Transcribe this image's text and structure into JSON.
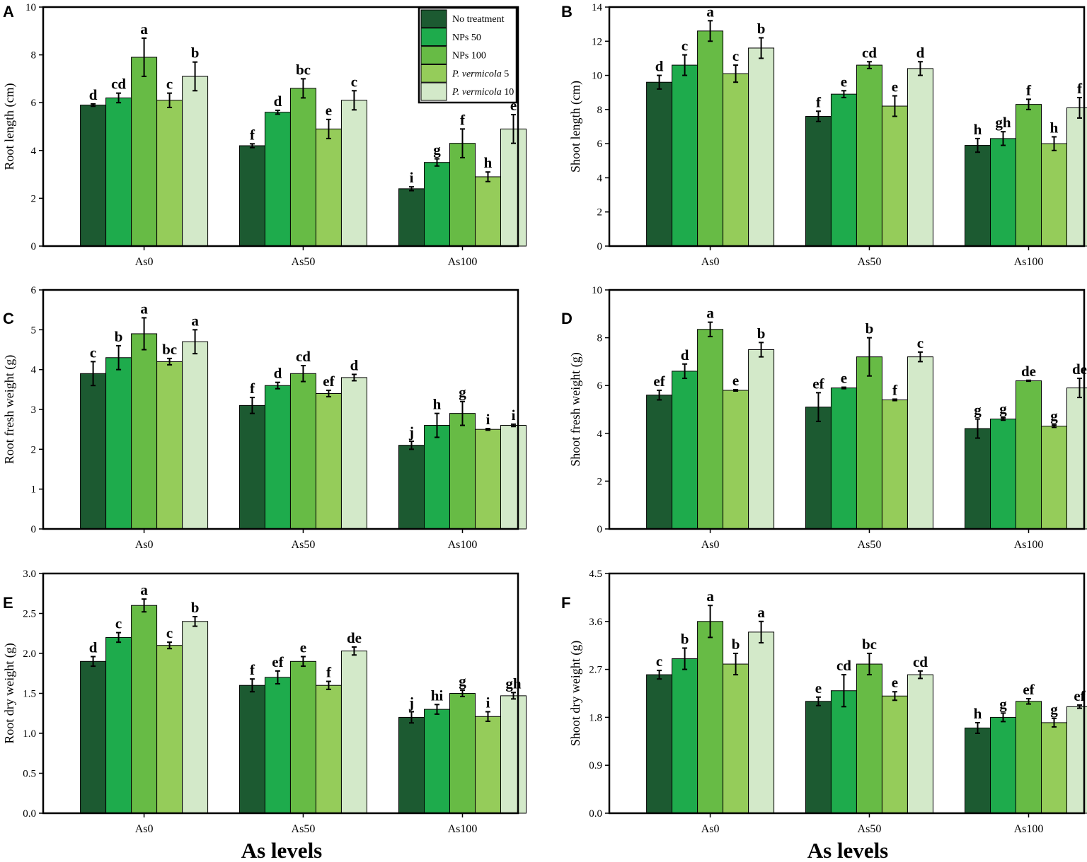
{
  "colors": {
    "No treatment": "#1c5a31",
    "NPs 50": "#1eab4c",
    "NPs 100": "#67bb45",
    "P. vermicola 5": "#95cc5a",
    "P. vermicola 10": "#d3e9c9"
  },
  "legend": {
    "entries": [
      {
        "prefix": "No treatment",
        "italic": "",
        "suffix": ""
      },
      {
        "prefix": "NPs 50",
        "italic": "",
        "suffix": ""
      },
      {
        "prefix": "NPs 100",
        "italic": "",
        "suffix": ""
      },
      {
        "prefix": "",
        "italic": "P. vermicola",
        "suffix": " 5"
      },
      {
        "prefix": "",
        "italic": "P. vermicola",
        "suffix": " 10"
      }
    ]
  },
  "x_title": "As levels",
  "chart_data": [
    {
      "panel": "A",
      "type": "bar",
      "ylabel": "Root length (cm)",
      "xlabel": "As levels",
      "categories": [
        "As0",
        "As50",
        "As100"
      ],
      "ylim": [
        0,
        10
      ],
      "yticks": [
        0,
        2,
        4,
        6,
        8,
        10
      ],
      "ytick_labels": [
        "0",
        "2",
        "4",
        "6",
        "8",
        "10"
      ],
      "series": [
        {
          "name": "No treatment",
          "values": [
            5.9,
            4.2,
            2.4
          ],
          "errors": [
            0.05,
            0.08,
            0.08
          ],
          "letters": [
            "d",
            "f",
            "i"
          ]
        },
        {
          "name": "NPs 50",
          "values": [
            6.2,
            5.6,
            3.5
          ],
          "errors": [
            0.2,
            0.08,
            0.15
          ],
          "letters": [
            "cd",
            "d",
            "g"
          ]
        },
        {
          "name": "NPs 100",
          "values": [
            7.9,
            6.6,
            4.3
          ],
          "errors": [
            0.8,
            0.4,
            0.6
          ],
          "letters": [
            "a",
            "bc",
            "f"
          ]
        },
        {
          "name": "P. vermicola 5",
          "values": [
            6.1,
            4.9,
            2.9
          ],
          "errors": [
            0.3,
            0.4,
            0.2
          ],
          "letters": [
            "c",
            "e",
            "h"
          ]
        },
        {
          "name": "P. vermicola 10",
          "values": [
            7.1,
            6.1,
            4.9
          ],
          "errors": [
            0.6,
            0.4,
            0.6
          ],
          "letters": [
            "b",
            "c",
            "e"
          ]
        }
      ]
    },
    {
      "panel": "B",
      "type": "bar",
      "ylabel": "Shoot length (cm)",
      "xlabel": "As levels",
      "categories": [
        "As0",
        "As50",
        "As100"
      ],
      "ylim": [
        0,
        14
      ],
      "yticks": [
        0,
        2,
        4,
        6,
        8,
        10,
        12,
        14
      ],
      "ytick_labels": [
        "0",
        "2",
        "4",
        "6",
        "8",
        "10",
        "12",
        "14"
      ],
      "series": [
        {
          "name": "No treatment",
          "values": [
            9.6,
            7.6,
            5.9
          ],
          "errors": [
            0.4,
            0.3,
            0.4
          ],
          "letters": [
            "d",
            "f",
            "h"
          ]
        },
        {
          "name": "NPs 50",
          "values": [
            10.6,
            8.9,
            6.3
          ],
          "errors": [
            0.6,
            0.2,
            0.4
          ],
          "letters": [
            "c",
            "e",
            "gh"
          ]
        },
        {
          "name": "NPs 100",
          "values": [
            12.6,
            10.6,
            8.3
          ],
          "errors": [
            0.6,
            0.2,
            0.3
          ],
          "letters": [
            "a",
            "cd",
            "f"
          ]
        },
        {
          "name": "P. vermicola 5",
          "values": [
            10.1,
            8.2,
            6.0
          ],
          "errors": [
            0.5,
            0.6,
            0.4
          ],
          "letters": [
            "c",
            "e",
            "h"
          ]
        },
        {
          "name": "P. vermicola 10",
          "values": [
            11.6,
            10.4,
            8.1
          ],
          "errors": [
            0.6,
            0.4,
            0.6
          ],
          "letters": [
            "b",
            "d",
            "f"
          ]
        }
      ]
    },
    {
      "panel": "C",
      "type": "bar",
      "ylabel": "Root fresh weight (g)",
      "xlabel": "As levels",
      "categories": [
        "As0",
        "As50",
        "As100"
      ],
      "ylim": [
        0,
        6
      ],
      "yticks": [
        0,
        1,
        2,
        3,
        4,
        5,
        6
      ],
      "ytick_labels": [
        "0",
        "1",
        "2",
        "3",
        "4",
        "5",
        "6"
      ],
      "series": [
        {
          "name": "No treatment",
          "values": [
            3.9,
            3.1,
            2.1
          ],
          "errors": [
            0.3,
            0.2,
            0.1
          ],
          "letters": [
            "c",
            "f",
            "j"
          ]
        },
        {
          "name": "NPs 50",
          "values": [
            4.3,
            3.6,
            2.6
          ],
          "errors": [
            0.3,
            0.08,
            0.3
          ],
          "letters": [
            "b",
            "d",
            "h"
          ]
        },
        {
          "name": "NPs 100",
          "values": [
            4.9,
            3.9,
            2.9
          ],
          "errors": [
            0.4,
            0.2,
            0.3
          ],
          "letters": [
            "a",
            "cd",
            "g"
          ]
        },
        {
          "name": "P. vermicola 5",
          "values": [
            4.2,
            3.4,
            2.5
          ],
          "errors": [
            0.08,
            0.08,
            0.02
          ],
          "letters": [
            "bc",
            "ef",
            "i"
          ]
        },
        {
          "name": "P. vermicola 10",
          "values": [
            4.7,
            3.8,
            2.6
          ],
          "errors": [
            0.3,
            0.08,
            0.03
          ],
          "letters": [
            "a",
            "d",
            "i"
          ]
        }
      ]
    },
    {
      "panel": "D",
      "type": "bar",
      "ylabel": "Shoot fresh weight (g)",
      "xlabel": "As levels",
      "categories": [
        "As0",
        "As50",
        "As100"
      ],
      "ylim": [
        0,
        10
      ],
      "yticks": [
        0,
        2,
        4,
        6,
        8,
        10
      ],
      "ytick_labels": [
        "0",
        "2",
        "4",
        "6",
        "8",
        "10"
      ],
      "series": [
        {
          "name": "No treatment",
          "values": [
            5.6,
            5.1,
            4.2
          ],
          "errors": [
            0.2,
            0.6,
            0.4
          ],
          "letters": [
            "ef",
            "ef",
            "g"
          ]
        },
        {
          "name": "NPs 50",
          "values": [
            6.6,
            5.9,
            4.6
          ],
          "errors": [
            0.3,
            0.03,
            0.05
          ],
          "letters": [
            "d",
            "e",
            "g"
          ]
        },
        {
          "name": "NPs 100",
          "values": [
            8.35,
            7.2,
            6.2
          ],
          "errors": [
            0.3,
            0.8,
            0.02
          ],
          "letters": [
            "a",
            "b",
            "de"
          ]
        },
        {
          "name": "P. vermicola 5",
          "values": [
            5.8,
            5.4,
            4.3
          ],
          "errors": [
            0.03,
            0.03,
            0.05
          ],
          "letters": [
            "e",
            "f",
            "g"
          ]
        },
        {
          "name": "P. vermicola 10",
          "values": [
            7.5,
            7.2,
            5.9
          ],
          "errors": [
            0.3,
            0.2,
            0.4
          ],
          "letters": [
            "b",
            "c",
            "de"
          ]
        }
      ]
    },
    {
      "panel": "E",
      "type": "bar",
      "ylabel": "Root dry weight (g)",
      "xlabel": "As levels",
      "categories": [
        "As0",
        "As50",
        "As100"
      ],
      "ylim": [
        0,
        3
      ],
      "yticks": [
        0,
        0.5,
        1,
        1.5,
        2,
        2.5,
        3
      ],
      "ytick_labels": [
        "0.0",
        "0.5",
        "1.0",
        "1.5",
        "2.0",
        "2.5",
        "3.0"
      ],
      "series": [
        {
          "name": "No treatment",
          "values": [
            1.9,
            1.6,
            1.2
          ],
          "errors": [
            0.06,
            0.08,
            0.07
          ],
          "letters": [
            "d",
            "f",
            "j"
          ]
        },
        {
          "name": "NPs 50",
          "values": [
            2.2,
            1.7,
            1.3
          ],
          "errors": [
            0.06,
            0.08,
            0.06
          ],
          "letters": [
            "c",
            "ef",
            "hi"
          ]
        },
        {
          "name": "NPs 100",
          "values": [
            2.6,
            1.9,
            1.5
          ],
          "errors": [
            0.08,
            0.06,
            0.04
          ],
          "letters": [
            "a",
            "e",
            "g"
          ]
        },
        {
          "name": "P. vermicola 5",
          "values": [
            2.1,
            1.6,
            1.21
          ],
          "errors": [
            0.04,
            0.05,
            0.06
          ],
          "letters": [
            "c",
            "f",
            "i"
          ]
        },
        {
          "name": "P. vermicola 10",
          "values": [
            2.4,
            2.03,
            1.47
          ],
          "errors": [
            0.06,
            0.05,
            0.04
          ],
          "letters": [
            "b",
            "de",
            "gh"
          ]
        }
      ]
    },
    {
      "panel": "F",
      "type": "bar",
      "ylabel": "Shoot dry weight (g)",
      "xlabel": "As levels",
      "categories": [
        "As0",
        "As50",
        "As100"
      ],
      "ylim": [
        0,
        4.5
      ],
      "yticks": [
        0,
        0.9,
        1.8,
        2.7,
        3.6,
        4.5
      ],
      "ytick_labels": [
        "0.0",
        "0.9",
        "1.8",
        "2.7",
        "3.6",
        "4.5"
      ],
      "series": [
        {
          "name": "No treatment",
          "values": [
            2.6,
            2.1,
            1.6
          ],
          "errors": [
            0.08,
            0.08,
            0.1
          ],
          "letters": [
            "c",
            "e",
            "h"
          ]
        },
        {
          "name": "NPs 50",
          "values": [
            2.9,
            2.3,
            1.8
          ],
          "errors": [
            0.2,
            0.3,
            0.08
          ],
          "letters": [
            "b",
            "cd",
            "g"
          ]
        },
        {
          "name": "NPs 100",
          "values": [
            3.6,
            2.8,
            2.1
          ],
          "errors": [
            0.3,
            0.2,
            0.05
          ],
          "letters": [
            "a",
            "bc",
            "ef"
          ]
        },
        {
          "name": "P. vermicola 5",
          "values": [
            2.8,
            2.2,
            1.7
          ],
          "errors": [
            0.2,
            0.08,
            0.08
          ],
          "letters": [
            "b",
            "e",
            "g"
          ]
        },
        {
          "name": "P. vermicola 10",
          "values": [
            3.4,
            2.6,
            2.0
          ],
          "errors": [
            0.2,
            0.07,
            0.03
          ],
          "letters": [
            "a",
            "cd",
            "ef"
          ]
        }
      ]
    }
  ]
}
